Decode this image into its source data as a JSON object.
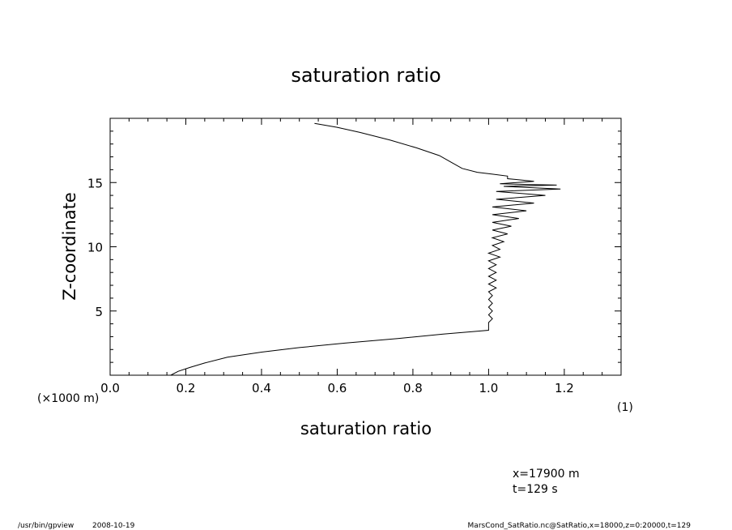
{
  "chart_data": {
    "type": "line",
    "title": "saturation ratio",
    "xlabel": "saturation ratio",
    "ylabel": "Z-coordinate",
    "xlim": [
      0.0,
      1.35
    ],
    "ylim": [
      0,
      20
    ],
    "x_ticks": [
      "0.0",
      "0.2",
      "0.4",
      "0.6",
      "0.8",
      "1.0",
      "1.2"
    ],
    "y_ticks": [
      "5",
      "10",
      "15"
    ],
    "y_unit_label": "(×1000 m)",
    "x_unit_label": "(1)",
    "grid": false,
    "series": [
      {
        "points": [
          [
            0.16,
            0.0
          ],
          [
            0.18,
            0.3
          ],
          [
            0.21,
            0.6
          ],
          [
            0.25,
            0.95
          ],
          [
            0.31,
            1.4
          ],
          [
            0.4,
            1.8
          ],
          [
            0.5,
            2.15
          ],
          [
            0.62,
            2.5
          ],
          [
            0.76,
            2.85
          ],
          [
            0.88,
            3.2
          ],
          [
            0.96,
            3.4
          ],
          [
            1.0,
            3.5
          ],
          [
            1.0,
            3.6
          ],
          [
            1.0,
            4.1
          ],
          [
            1.01,
            4.4
          ],
          [
            1.0,
            4.7
          ],
          [
            1.01,
            5.0
          ],
          [
            1.0,
            5.3
          ],
          [
            1.01,
            5.6
          ],
          [
            1.0,
            5.9
          ],
          [
            1.01,
            6.2
          ],
          [
            1.0,
            6.5
          ],
          [
            1.02,
            6.8
          ],
          [
            1.0,
            7.1
          ],
          [
            1.02,
            7.4
          ],
          [
            1.0,
            7.7
          ],
          [
            1.02,
            8.0
          ],
          [
            1.0,
            8.3
          ],
          [
            1.02,
            8.6
          ],
          [
            1.0,
            8.9
          ],
          [
            1.03,
            9.2
          ],
          [
            1.0,
            9.5
          ],
          [
            1.03,
            9.8
          ],
          [
            1.01,
            10.1
          ],
          [
            1.04,
            10.4
          ],
          [
            1.01,
            10.7
          ],
          [
            1.05,
            11.0
          ],
          [
            1.01,
            11.3
          ],
          [
            1.06,
            11.6
          ],
          [
            1.01,
            11.9
          ],
          [
            1.08,
            12.2
          ],
          [
            1.01,
            12.5
          ],
          [
            1.1,
            12.8
          ],
          [
            1.01,
            13.1
          ],
          [
            1.12,
            13.4
          ],
          [
            1.02,
            13.7
          ],
          [
            1.15,
            14.0
          ],
          [
            1.02,
            14.3
          ],
          [
            1.19,
            14.5
          ],
          [
            1.04,
            14.7
          ],
          [
            1.18,
            14.8
          ],
          [
            1.03,
            14.9
          ],
          [
            1.12,
            15.1
          ],
          [
            1.05,
            15.3
          ],
          [
            1.05,
            15.5
          ],
          [
            1.01,
            15.65
          ],
          [
            0.97,
            15.8
          ],
          [
            0.93,
            16.1
          ],
          [
            0.9,
            16.6
          ],
          [
            0.87,
            17.1
          ],
          [
            0.81,
            17.7
          ],
          [
            0.74,
            18.3
          ],
          [
            0.66,
            18.9
          ],
          [
            0.6,
            19.3
          ],
          [
            0.54,
            19.6
          ]
        ]
      }
    ]
  },
  "annotations": {
    "x_position": "x=17900 m",
    "time": "t=129 s"
  },
  "footer": {
    "program": "/usr/bin/gpview",
    "date": "2008-10-19",
    "source": "MarsCond_SatRatio.nc@SatRatio,x=18000,z=0:20000,t=129"
  }
}
